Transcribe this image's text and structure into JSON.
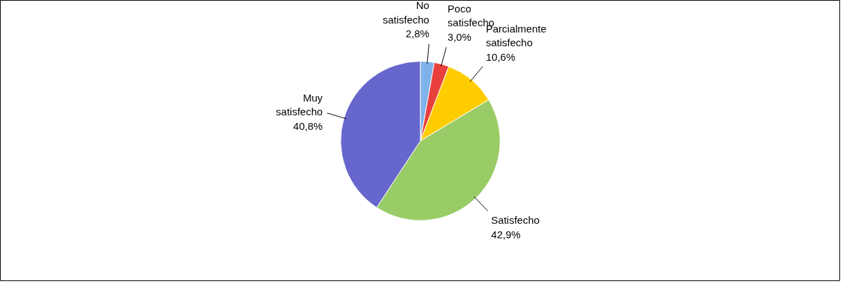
{
  "chart_data": {
    "type": "pie",
    "categories": [
      "No satisfecho",
      "Poco satisfecho",
      "Parcialmente satisfecho",
      "Satisfecho",
      "Muy satisfecho"
    ],
    "values": [
      2.8,
      3.0,
      10.6,
      42.9,
      40.8
    ],
    "value_labels": [
      "2,8%",
      "3,0%",
      "10,6%",
      "42,9%",
      "40,8%"
    ],
    "colors": [
      "#7fb2e8",
      "#e8403c",
      "#ffcc00",
      "#99cc66",
      "#6666cc"
    ]
  }
}
